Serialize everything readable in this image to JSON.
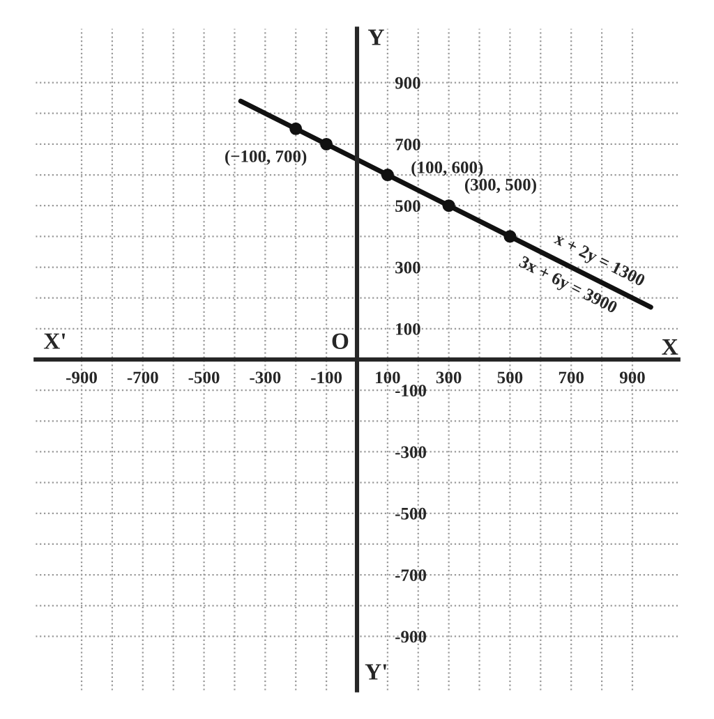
{
  "chart_data": {
    "type": "line",
    "xlabel": "X",
    "ylabel": "Y",
    "series": [
      {
        "color": "#111111",
        "x": [
          -380,
          960
        ],
        "values": [
          840,
          170
        ],
        "marker": "none"
      },
      {
        "type": "scatter",
        "color": "#111111",
        "x": [
          -200,
          -100,
          100,
          300,
          500
        ],
        "values": [
          750,
          700,
          600,
          500,
          400
        ],
        "marker": "circle"
      }
    ],
    "xlim": [
      -1050,
      1050
    ],
    "ylim": [
      -1075,
      1075
    ],
    "xticks": [
      {
        "value": -900,
        "label": "-900"
      },
      {
        "value": -800,
        "label": null
      },
      {
        "value": -700,
        "label": "-700"
      },
      {
        "value": -600,
        "label": null
      },
      {
        "value": -500,
        "label": "-500"
      },
      {
        "value": -400,
        "label": null
      },
      {
        "value": -300,
        "label": "-300"
      },
      {
        "value": -200,
        "label": null
      },
      {
        "value": -100,
        "label": "-100"
      },
      100,
      {
        "value": 200,
        "label": null
      },
      300,
      {
        "value": 400,
        "label": null
      },
      500,
      {
        "value": 600,
        "label": null
      },
      700,
      {
        "value": 800,
        "label": null
      },
      900
    ],
    "yticks": [
      {
        "value": -900,
        "label": "-900"
      },
      {
        "value": -800,
        "label": null
      },
      {
        "value": -700,
        "label": "-700"
      },
      {
        "value": -600,
        "label": null
      },
      {
        "value": -500,
        "label": "-500"
      },
      {
        "value": -400,
        "label": null
      },
      {
        "value": -300,
        "label": "-300"
      },
      {
        "value": -200,
        "label": null
      },
      {
        "value": -100,
        "label": "-100"
      },
      100,
      {
        "value": 200,
        "label": null
      },
      300,
      {
        "value": 400,
        "label": null
      },
      500,
      {
        "value": 600,
        "label": null
      },
      700,
      {
        "value": 800,
        "label": null
      },
      900
    ],
    "grid": true,
    "annotations": [
      {
        "text": "(−100, 700)",
        "x": -100,
        "y": 700
      },
      {
        "text": "(100, 600)",
        "x": 100,
        "y": 600
      },
      {
        "text": "(300, 500)",
        "x": 300,
        "y": 500
      },
      {
        "text": "x + 2y = 1300",
        "x": 780,
        "y": 260
      },
      {
        "text": "3x + 6y = 3900",
        "x": 700,
        "y": 300
      },
      "X'",
      "Y'",
      "O"
    ]
  }
}
